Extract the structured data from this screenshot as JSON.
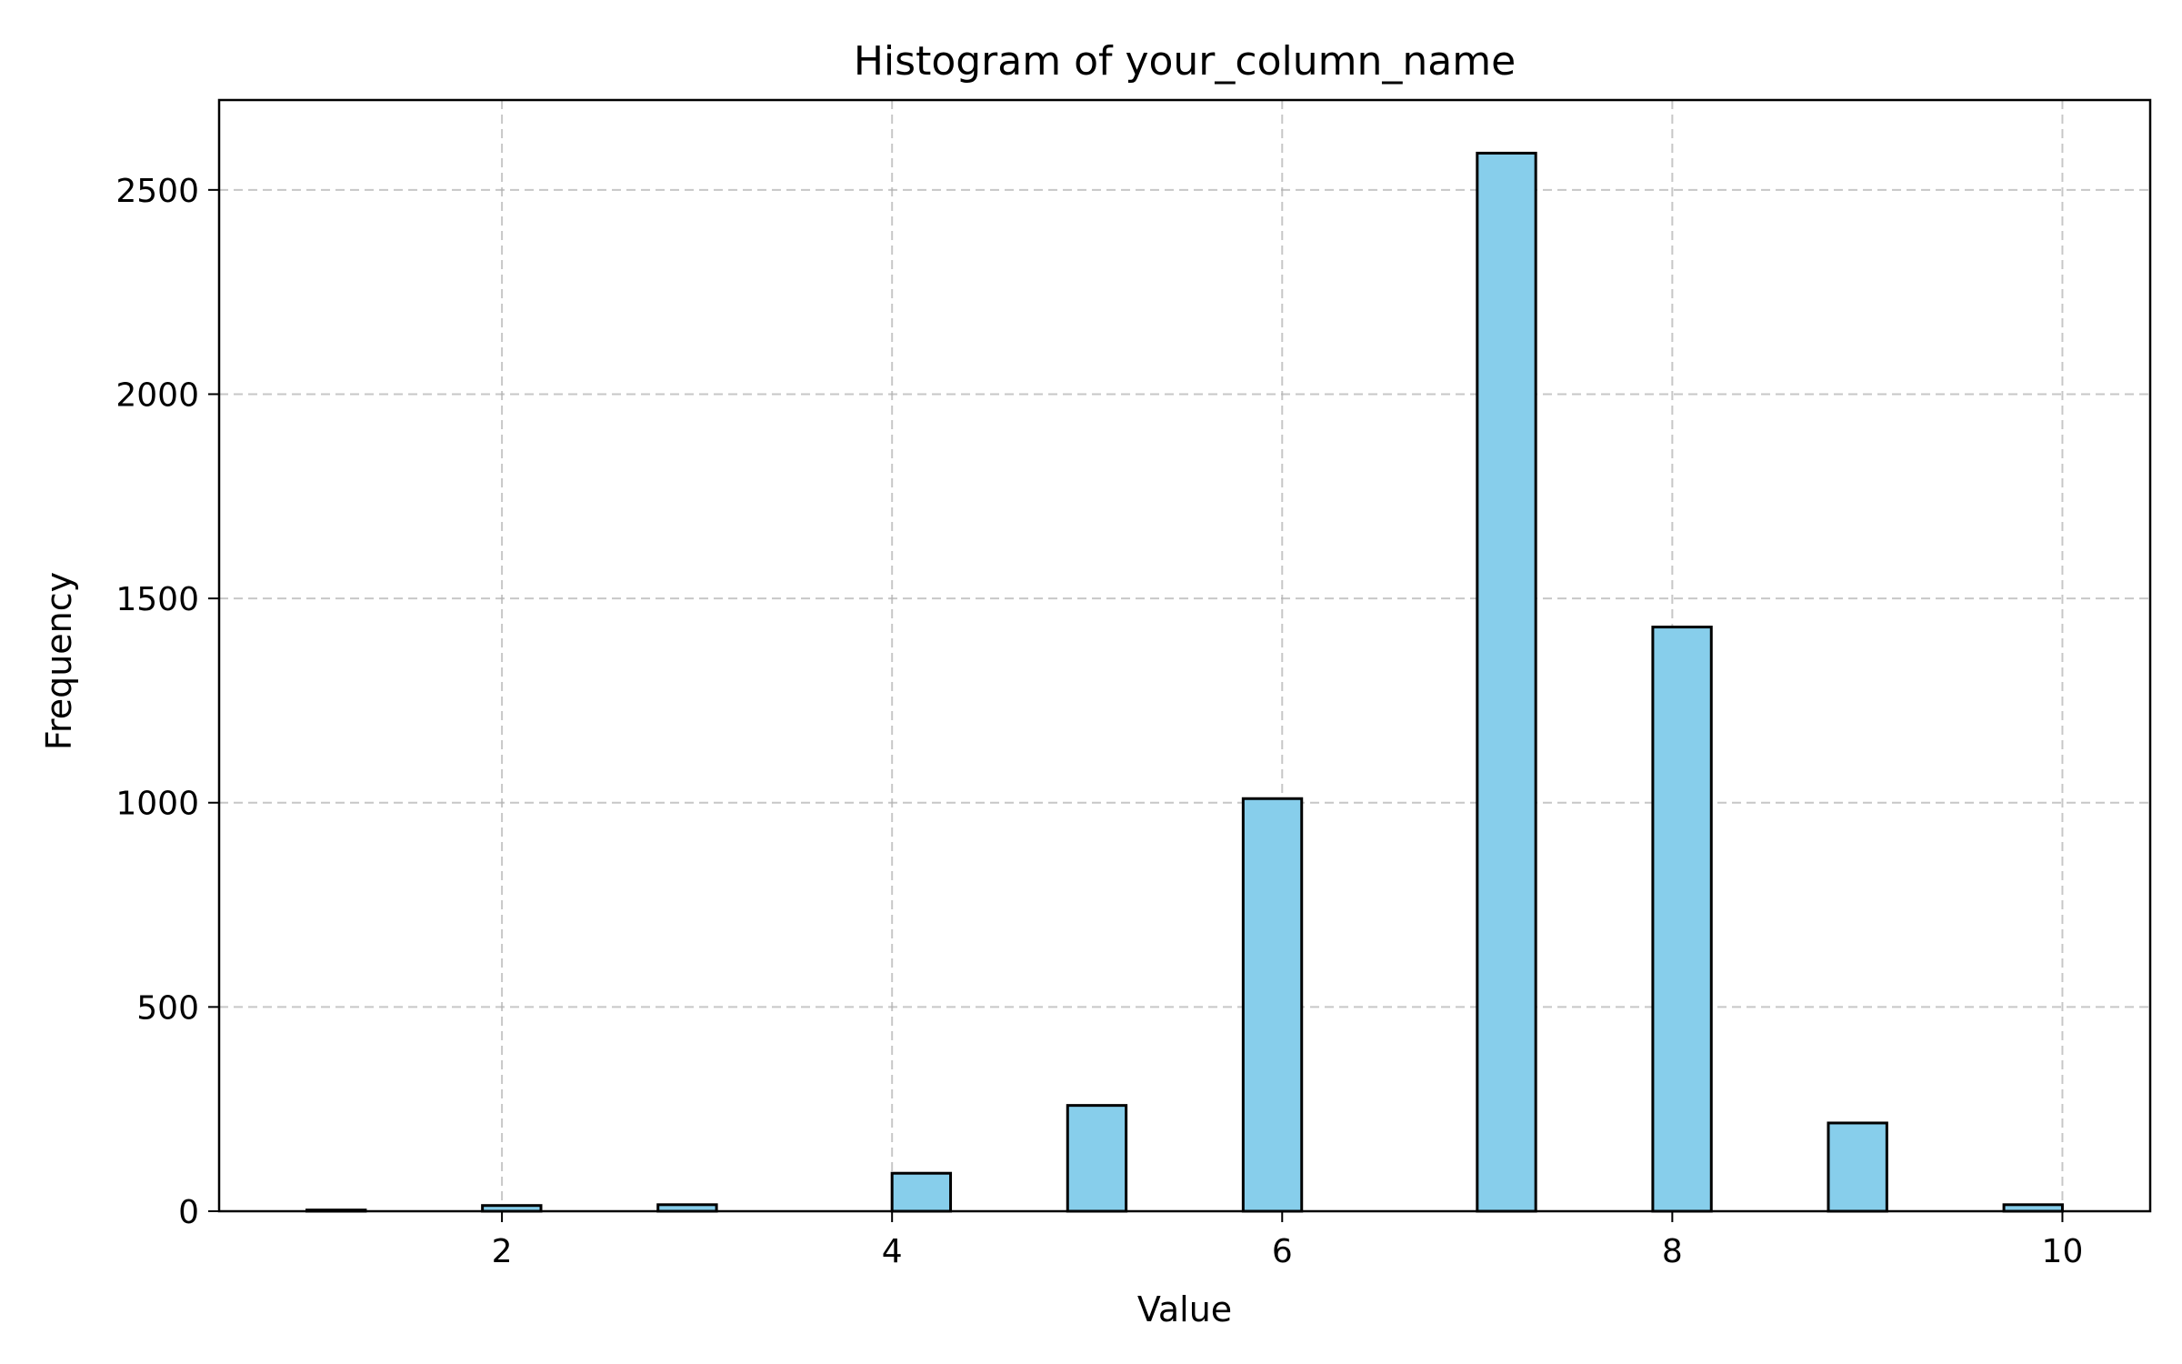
{
  "chart_data": {
    "type": "bar",
    "title": "Histogram of your_column_name",
    "xlabel": "Value",
    "ylabel": "Frequency",
    "xlim": [
      0.55,
      10.45
    ],
    "ylim": [
      0,
      2720
    ],
    "xticks": [
      2,
      4,
      6,
      8,
      10
    ],
    "yticks": [
      0,
      500,
      1000,
      1500,
      2000,
      2500
    ],
    "grid": true,
    "bin_width": 0.3,
    "bins": [
      {
        "start": 1.0,
        "end": 1.3,
        "count": 3
      },
      {
        "start": 1.9,
        "end": 2.2,
        "count": 14
      },
      {
        "start": 2.8,
        "end": 3.1,
        "count": 16
      },
      {
        "start": 4.0,
        "end": 4.3,
        "count": 93
      },
      {
        "start": 4.9,
        "end": 5.2,
        "count": 259
      },
      {
        "start": 5.8,
        "end": 6.1,
        "count": 1010
      },
      {
        "start": 7.0,
        "end": 7.3,
        "count": 2590
      },
      {
        "start": 7.9,
        "end": 8.2,
        "count": 1430
      },
      {
        "start": 8.8,
        "end": 9.1,
        "count": 216
      },
      {
        "start": 9.7,
        "end": 10.0,
        "count": 16
      }
    ],
    "colors": {
      "bar_fill": "#87ceeb",
      "bar_edge": "#000000"
    }
  }
}
